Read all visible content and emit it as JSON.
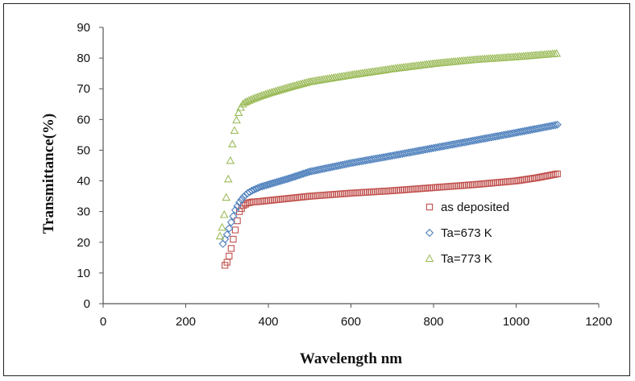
{
  "chart_data": {
    "type": "scatter",
    "xlabel": "Wavelength nm",
    "ylabel": "Transmittance(%)",
    "xlim": [
      0,
      1200
    ],
    "ylim": [
      0,
      90
    ],
    "x_ticks": [
      0,
      200,
      400,
      600,
      800,
      1000,
      1200
    ],
    "y_ticks": [
      0,
      10,
      20,
      30,
      40,
      50,
      60,
      70,
      80,
      90
    ],
    "grid": false,
    "legend_position": "right",
    "x_step": 5,
    "series": [
      {
        "name": "as deposited",
        "marker": "square",
        "color": "#c0504d",
        "x": [
          295,
          300,
          305,
          310,
          315,
          320,
          325,
          330,
          340,
          350,
          360,
          380,
          400,
          450,
          500,
          600,
          700,
          800,
          900,
          1000,
          1050,
          1100
        ],
        "y": [
          12.5,
          13.5,
          15.5,
          18,
          21,
          24,
          27,
          30,
          32,
          32.8,
          33.1,
          33.3,
          33.6,
          34.3,
          35,
          36,
          36.8,
          37.8,
          38.8,
          40,
          41,
          42.3
        ]
      },
      {
        "name": "Ta=673 K",
        "marker": "diamond",
        "color": "#4f81bd",
        "x": [
          290,
          300,
          310,
          320,
          330,
          340,
          350,
          360,
          370,
          380,
          400,
          450,
          500,
          600,
          700,
          800,
          900,
          1000,
          1100
        ],
        "y": [
          19.5,
          22.5,
          26.5,
          30.5,
          33,
          34.8,
          36,
          36.8,
          37.4,
          38,
          38.8,
          40.8,
          43,
          45.8,
          48.2,
          50.7,
          53.2,
          55.7,
          58.3
        ]
      },
      {
        "name": "Ta=773 K",
        "marker": "triangle",
        "color": "#9bbb59",
        "x": [
          283,
          290,
          295,
          300,
          305,
          310,
          315,
          320,
          325,
          330,
          335,
          340,
          350,
          360,
          370,
          380,
          400,
          450,
          500,
          600,
          700,
          800,
          900,
          1000,
          1100
        ],
        "y": [
          22,
          26,
          31,
          37,
          43,
          49,
          54,
          58,
          61,
          63,
          64.5,
          65.3,
          66,
          66.6,
          67.1,
          67.6,
          68.5,
          70.5,
          72.3,
          74.5,
          76.5,
          78.2,
          79.5,
          80.4,
          81.5
        ]
      }
    ]
  }
}
